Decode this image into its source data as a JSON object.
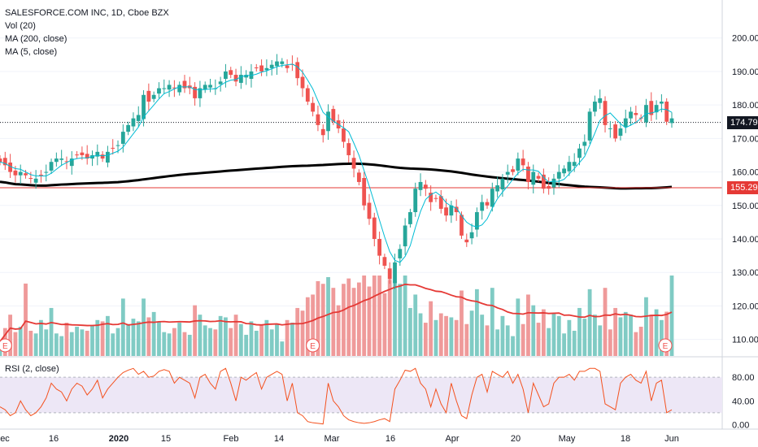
{
  "legend": {
    "symbol": "SALESFORCE.COM INC, 1D, Cboe BZX",
    "vol": "Vol (20)",
    "ma200": "MA (200, close)",
    "ma5": "MA (5, close)"
  },
  "rsi_label": "RSI (2, close)",
  "last_price_tag": "174.79",
  "hline_tag": "155.29",
  "earnings_marker": "E",
  "colors": {
    "up": "#26a69a",
    "down": "#ef5350",
    "ma200": "#000000",
    "ma5": "#00bcd4",
    "vol_ma": "#e53935",
    "rsi": "#f4511e",
    "rsi_band": "#ede7f6",
    "hline": "#e53935"
  },
  "chart_data": {
    "type": "candlestick",
    "price_axis": {
      "range": [
        107,
        206
      ],
      "ticks": [
        "200.00",
        "190.00",
        "180.00",
        "170.00",
        "160.00",
        "150.00",
        "140.00",
        "130.00",
        "120.00",
        "110.00"
      ]
    },
    "rsi_axis": {
      "range": [
        -5,
        105
      ],
      "ticks": [
        "80.00",
        "40.00",
        "0.00"
      ],
      "band": [
        20,
        80
      ]
    },
    "x_ticks": [
      "ec",
      "16",
      "2020",
      "15",
      "Feb",
      "14",
      "Mar",
      "16",
      "Apr",
      "20",
      "May",
      "18",
      "Jun"
    ],
    "last_price": 174.79,
    "horizontal_line": 155.29,
    "closes": [
      163,
      162,
      160,
      159,
      160,
      159,
      158,
      158,
      159,
      160,
      163,
      164,
      164,
      163,
      164,
      165,
      165,
      164,
      165,
      166,
      164,
      166,
      167,
      168,
      172,
      174,
      176,
      177,
      183,
      181,
      183,
      185,
      185,
      186,
      185,
      186,
      185,
      185,
      182,
      185,
      186,
      186,
      185,
      187,
      190,
      189,
      187,
      189,
      189,
      190,
      191,
      190,
      191,
      192,
      193,
      193,
      191,
      192,
      188,
      185,
      181,
      178,
      174,
      171,
      178,
      175,
      173,
      169,
      165,
      161,
      157,
      150,
      146,
      140,
      135,
      132,
      128,
      133,
      137,
      144,
      148,
      155,
      157,
      155,
      151,
      152,
      149,
      147,
      150,
      148,
      141,
      139,
      142,
      148,
      151,
      150,
      155,
      156,
      158,
      160,
      160,
      164,
      162,
      157,
      160,
      158,
      155,
      155,
      158,
      160,
      161,
      163,
      163,
      167,
      169,
      178,
      181,
      182,
      174,
      173,
      170,
      173,
      176,
      178,
      177,
      176,
      180,
      177,
      180,
      181,
      175,
      176
    ],
    "rsi": [
      30,
      25,
      15,
      20,
      40,
      25,
      15,
      20,
      30,
      45,
      70,
      60,
      55,
      40,
      60,
      70,
      65,
      50,
      60,
      75,
      45,
      60,
      70,
      80,
      88,
      92,
      95,
      85,
      90,
      80,
      82,
      90,
      93,
      90,
      70,
      80,
      75,
      70,
      45,
      80,
      85,
      70,
      60,
      90,
      95,
      70,
      40,
      80,
      75,
      82,
      88,
      60,
      80,
      85,
      90,
      85,
      40,
      70,
      20,
      15,
      5,
      3,
      2,
      1,
      70,
      40,
      30,
      15,
      8,
      5,
      3,
      2,
      3,
      5,
      8,
      10,
      5,
      60,
      75,
      92,
      90,
      95,
      70,
      60,
      30,
      60,
      35,
      20,
      70,
      40,
      15,
      10,
      50,
      80,
      85,
      55,
      90,
      85,
      80,
      90,
      70,
      85,
      60,
      20,
      70,
      50,
      30,
      35,
      70,
      80,
      80,
      85,
      75,
      90,
      90,
      95,
      95,
      90,
      35,
      30,
      25,
      70,
      80,
      85,
      75,
      70,
      90,
      40,
      70,
      75,
      20,
      25
    ]
  }
}
